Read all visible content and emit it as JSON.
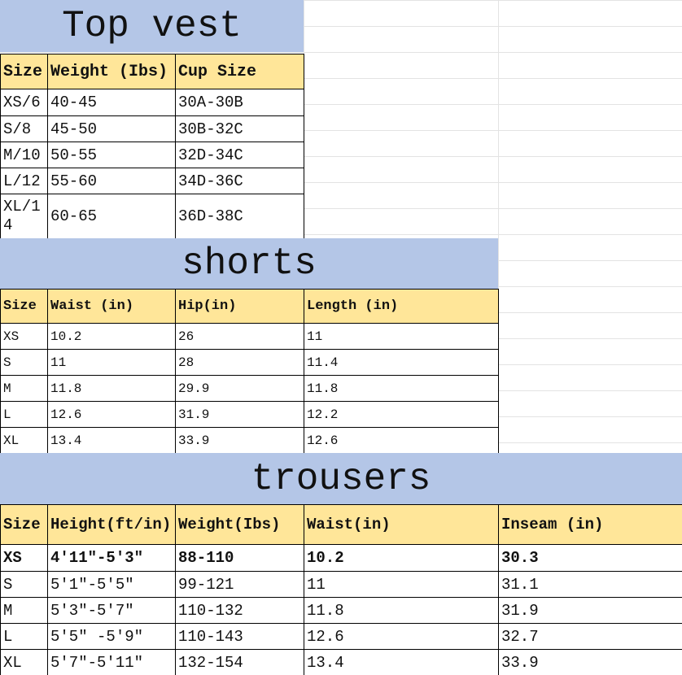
{
  "colors": {
    "title_bg": "#b4c6e7",
    "header_bg": "#ffe699"
  },
  "tables": [
    {
      "title": "Top vest",
      "headers": [
        "Size",
        "Weight (Ibs)",
        "Cup Size"
      ],
      "rows": [
        [
          "XS/6",
          "40-45",
          "30A-30B"
        ],
        [
          "S/8",
          "45-50",
          "30B-32C"
        ],
        [
          "M/10",
          "50-55",
          "32D-34C"
        ],
        [
          "L/12",
          "55-60",
          "34D-36C"
        ],
        [
          "XL/14",
          "60-65",
          "36D-38C"
        ]
      ]
    },
    {
      "title": "shorts",
      "headers": [
        "Size",
        "Waist (in)",
        "Hip(in)",
        "Length (in)"
      ],
      "rows": [
        [
          "XS",
          "10.2",
          "26",
          "11"
        ],
        [
          "S",
          "11",
          "28",
          "11.4"
        ],
        [
          "M",
          "11.8",
          "29.9",
          "11.8"
        ],
        [
          "L",
          "12.6",
          "31.9",
          "12.2"
        ],
        [
          "XL",
          "13.4",
          "33.9",
          "12.6"
        ]
      ]
    },
    {
      "title": "trousers",
      "headers": [
        "Size",
        "Height(ft/in)",
        "Weight(Ibs)",
        "Waist(in)",
        "Inseam  (in)"
      ],
      "rows": [
        [
          "XS",
          "4'11\"-5'3\"",
          "88-110",
          "10.2",
          "30.3"
        ],
        [
          "S",
          "5'1\"-5'5\"",
          "99-121",
          "11",
          "31.1"
        ],
        [
          "M",
          "5'3\"-5'7\"",
          "110-132",
          "11.8",
          "31.9"
        ],
        [
          "L",
          "5'5\" -5'9\"",
          "110-143",
          "12.6",
          "32.7"
        ],
        [
          "XL",
          "5'7\"-5'11\"",
          "132-154",
          "13.4",
          "33.9"
        ]
      ]
    }
  ]
}
